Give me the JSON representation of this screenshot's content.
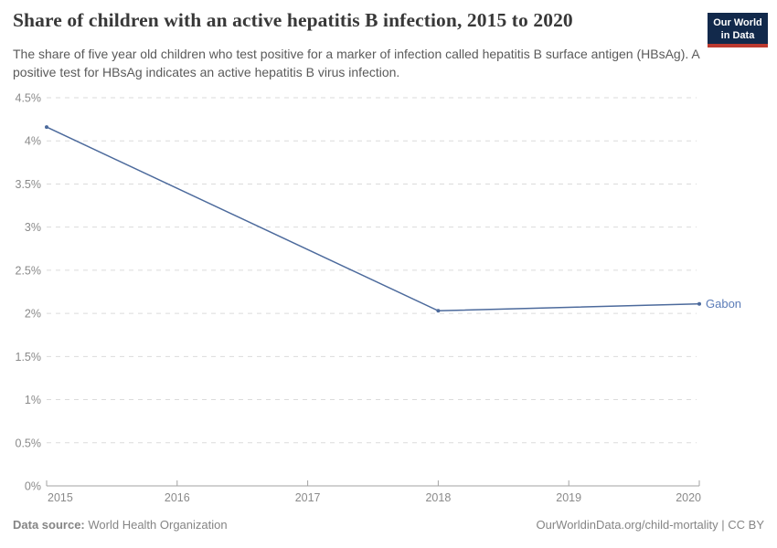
{
  "header": {
    "title": "Share of children with an active hepatitis B infection, 2015 to 2020",
    "subtitle": "The share of five year old children who test positive for a marker of infection called hepatitis B surface antigen (HBsAg). A positive test for HBsAg indicates an active hepatitis B virus infection.",
    "logo": {
      "line1": "Our World",
      "line2": "in Data",
      "bg_color": "#12294B",
      "accent_color": "#BC392F",
      "text_color": "#FFFFFF"
    }
  },
  "chart_data": {
    "type": "line",
    "title": "Share of children with an active hepatitis B infection, 2015 to 2020",
    "xlabel": "",
    "ylabel": "",
    "xlim": [
      2015,
      2020
    ],
    "ylim": [
      0,
      4.5
    ],
    "x_ticks": [
      2015,
      2016,
      2017,
      2018,
      2019,
      2020
    ],
    "y_ticks": [
      0,
      0.5,
      1,
      1.5,
      2,
      2.5,
      3,
      3.5,
      4,
      4.5
    ],
    "y_tick_suffix": "%",
    "grid": "horizontal-dashed",
    "legend_position": "end-of-line-label",
    "series": [
      {
        "name": "Gabon",
        "x": [
          2015,
          2018,
          2020
        ],
        "values": [
          4.16,
          2.03,
          2.11
        ]
      }
    ],
    "colors": {
      "line": "#4C6A9C",
      "end_label": "#5B7CB8",
      "grid": "#DBDBDB",
      "axis": "#A3A3A3",
      "tick_label": "#8A8A8A"
    }
  },
  "footer": {
    "source_label": "Data source:",
    "source_value": "World Health Organization",
    "right_text": "OurWorldinData.org/child-mortality | CC BY"
  }
}
